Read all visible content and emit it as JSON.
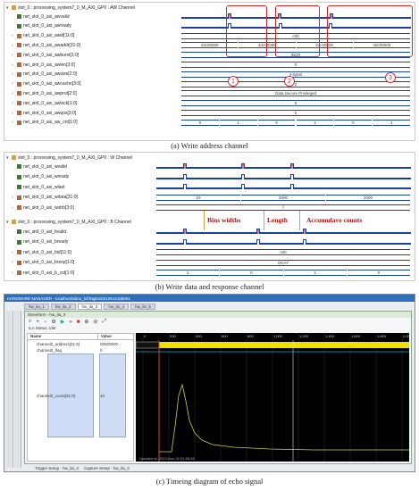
{
  "aw": {
    "header": "slot_0 : processing_system7_0_M_AXI_GP0 : AW Channel",
    "signals": [
      {
        "name": "net_slot_0_axi_awvalid",
        "kind": "bit"
      },
      {
        "name": "net_slot_0_axi_awready",
        "kind": "bit"
      },
      {
        "name": "net_slot_0_axi_awid[11:0]",
        "kind": "bus",
        "values": [
          "c00"
        ]
      },
      {
        "name": "net_slot_0_axi_awaddr[31:0]",
        "kind": "bus",
        "values": [
          "43c00000",
          "43c00000",
          "43c00000",
          "43c00000"
        ]
      },
      {
        "name": "net_slot_0_axi_awburst[1:0]",
        "kind": "bus",
        "values": [
          "INCR"
        ]
      },
      {
        "name": "net_slot_0_axi_awlen[3:0]",
        "kind": "bus",
        "values": [
          "0"
        ]
      },
      {
        "name": "net_slot_0_axi_awsize[2:0]",
        "kind": "bus",
        "values": [
          "4 bytes"
        ]
      },
      {
        "name": "net_slot_0_axi_awcache[3:0]",
        "kind": "bus",
        "values": [
          "2"
        ]
      },
      {
        "name": "net_slot_0_axi_awprot[2:0]",
        "kind": "bus",
        "values": [
          "Data Secure Privileged"
        ]
      },
      {
        "name": "net_slot_0_axi_awlock[1:0]",
        "kind": "bus",
        "values": [
          "0"
        ]
      },
      {
        "name": "net_slot_0_axi_awqos[3:0]",
        "kind": "bus",
        "values": [
          "0"
        ]
      },
      {
        "name": "net_slot_0_axi_aw_cnt[1:0]",
        "kind": "bus",
        "values": [
          "0",
          "1",
          "0",
          "1",
          "0",
          "1"
        ]
      }
    ],
    "markers": [
      "1",
      "2",
      "3"
    ],
    "caption": "(a) Write address channel"
  },
  "wb": {
    "header_w": "slot_0 : processing_system7_0_M_AXI_GP0 : W Channel",
    "header_b": "slot_0 : processing_system7_0_M_AXI_GP0 : B Channel",
    "signals_w": [
      {
        "name": "net_slot_0_axi_wvalid"
      },
      {
        "name": "net_slot_0_axi_wready"
      },
      {
        "name": "net_slot_0_axi_wlast"
      },
      {
        "name": "net_slot_0_axi_wdata[31:0]",
        "values": [
          "20",
          "2000",
          "2000"
        ]
      },
      {
        "name": "net_slot_0_axi_wstrb[3:0]",
        "values": [
          "f"
        ]
      }
    ],
    "signals_b": [
      {
        "name": "net_slot_0_axi_bvalid"
      },
      {
        "name": "net_slot_0_axi_bready"
      },
      {
        "name": "net_slot_0_axi_bid[11:0]",
        "values": [
          "c00"
        ]
      },
      {
        "name": "net_slot_0_axi_bresp[1:0]",
        "values": [
          "OKAY"
        ]
      },
      {
        "name": "net_slot_0_axi_b_cnt[1:0]",
        "values": [
          "1",
          "0",
          "1",
          "0"
        ]
      }
    ],
    "annotations": {
      "bins": "Bins widths",
      "length": "Length",
      "acc": "Accumulave counts"
    },
    "caption": "(b) Write data and response channel"
  },
  "hw": {
    "title": "HARDWARE MANAGER - localhost/xilinx_tcf/Digilent/210512166061",
    "tabs": [
      "hw_ila_1",
      "hw_ila_2",
      "hw_ila_3",
      "hw_ila_4",
      "hw_ila_5"
    ],
    "side_tabs": [
      "Hardware",
      "Dashboard Options",
      "Debug Probe Properties"
    ],
    "window_title": "Waveform - hw_ila_3",
    "status_label": "ILA Status: Idle",
    "col_name": "Name",
    "col_value": "Value",
    "probes": [
      {
        "name": "channel2_address[31:0]",
        "value": "00000000"
      },
      {
        "name": "channel2_flag",
        "value": "0"
      },
      {
        "name": "channel2_count[31:0]",
        "value": "10"
      }
    ],
    "time_ticks": [
      "0",
      "200",
      "400",
      "600",
      "800",
      "1,000",
      "1,200",
      "1,400",
      "1,600",
      "1,800",
      "2,000"
    ],
    "updated": "Updated at: 2023-Nov-02 01:58:28",
    "bottom_tabs": [
      "Trigger Setup - hw_ila_3",
      "Capture Setup - hw_ila_3"
    ],
    "caption": "(c) Timeing diagram of echo signal"
  },
  "colors": {
    "bus": "#1b3fa8",
    "marker_red": "#d22",
    "echo": "#f0e000",
    "hw_bg": "#000000"
  }
}
